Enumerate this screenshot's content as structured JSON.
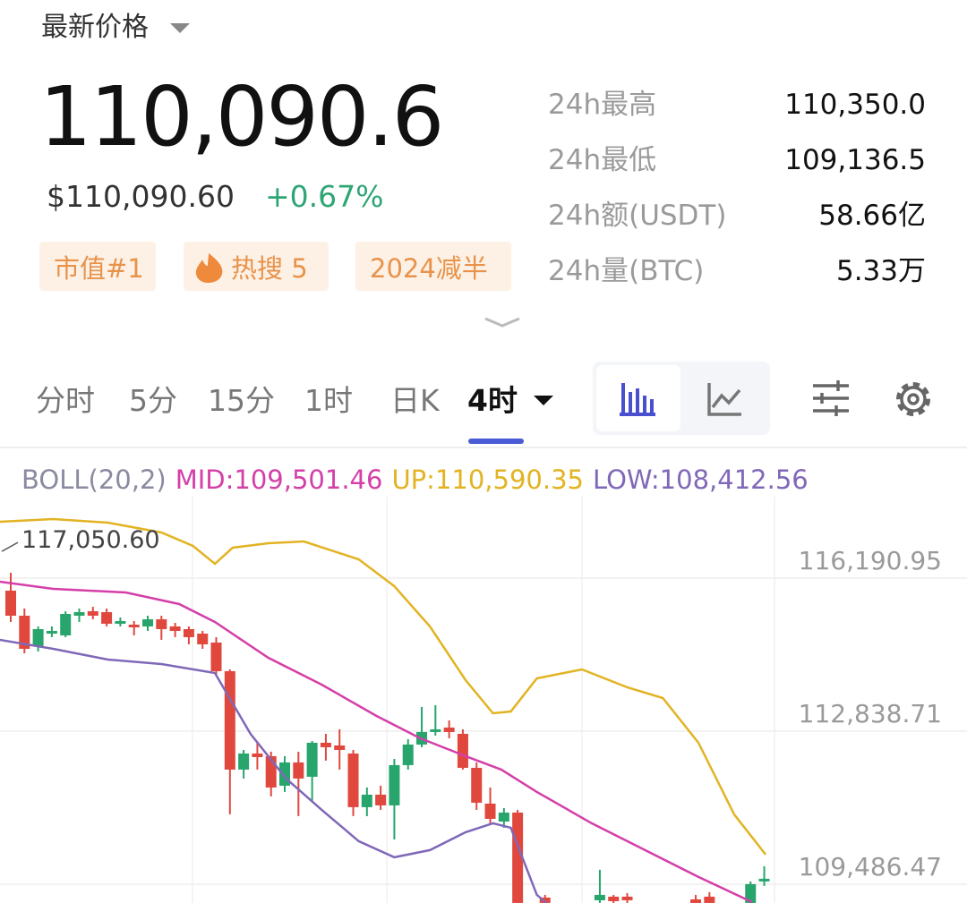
{
  "header": {
    "title": "最新价格",
    "price": "110,090.6",
    "usd": "$110,090.60",
    "change": "+0.67%",
    "tags": [
      "市值#1",
      "热搜 5",
      "2024减半"
    ]
  },
  "stats": [
    [
      "24h最高",
      "110,350.0"
    ],
    [
      "24h最低",
      "109,136.5"
    ],
    [
      "24h额(USDT)",
      "58.66亿"
    ],
    [
      "24h量(BTC)",
      "5.33万"
    ]
  ],
  "tabs": [
    "分时",
    "5分",
    "15分",
    "1时",
    "日K",
    "4时"
  ],
  "chart_data": {
    "type": "candlestick",
    "indicator": "BOLL(20,2)",
    "up_color": "#27a56c",
    "down_color": "#e0483e",
    "xlim": [
      -0.784,
      69.8
    ],
    "ylim": [
      109075,
      117975
    ],
    "yticks": [
      {
        "value": 116190.95,
        "label": "116,190.95"
      },
      {
        "value": 112838.71,
        "label": "112,838.71"
      },
      {
        "value": 109486.47,
        "label": "109,486.47"
      }
    ],
    "grid": true,
    "max_marker": {
      "value": 117050.6,
      "label": "117,050.60"
    },
    "x": [
      0,
      1,
      2,
      3,
      4,
      5,
      6,
      7,
      8,
      9,
      10,
      11,
      12,
      13,
      14,
      15,
      16,
      17,
      18,
      19,
      20,
      21,
      22,
      23,
      24,
      25,
      26,
      27,
      28,
      29,
      30,
      31,
      32,
      33,
      34,
      35,
      36,
      37,
      39,
      43,
      44,
      45,
      50,
      51,
      54,
      55
    ],
    "open": [
      115917,
      115368,
      114702,
      114976,
      114937,
      115368,
      115466,
      115446,
      115192,
      115172,
      115133,
      115290,
      115133,
      115074,
      114976,
      114780,
      114153,
      111997,
      112350,
      112291,
      111644,
      112154,
      111840,
      112585,
      112526,
      112350,
      111174,
      111448,
      111213,
      112095,
      112546,
      112820,
      112918,
      112781,
      112036,
      111252,
      110859,
      111056,
      109194,
      109135,
      109214,
      109214,
      109155,
      109214,
      109076,
      109547
    ],
    "close": [
      115368,
      114643,
      115074,
      115035,
      115407,
      115446,
      115368,
      115192,
      115250,
      115113,
      115290,
      115074,
      115035,
      114898,
      114741,
      114153,
      111997,
      112350,
      112271,
      111605,
      112154,
      111801,
      112585,
      112487,
      112428,
      111174,
      111448,
      111213,
      112095,
      112546,
      112820,
      112879,
      112820,
      112036,
      111272,
      110918,
      111056,
      109076,
      109076,
      109253,
      109115,
      109135,
      109076,
      109076,
      109488,
      109606
    ],
    "high": [
      116309,
      115525,
      115133,
      115133,
      115466,
      115525,
      115564,
      115525,
      115329,
      115250,
      115368,
      115368,
      115211,
      115133,
      115035,
      114898,
      114192,
      112428,
      112585,
      112389,
      112291,
      112389,
      112624,
      112781,
      112879,
      112428,
      111605,
      111644,
      112232,
      112663,
      113369,
      113408,
      113075,
      112879,
      112154,
      111605,
      111154,
      111115,
      109253,
      109802,
      109253,
      109292,
      109253,
      109312,
      109547,
      109880
    ],
    "low": [
      115231,
      114545,
      114584,
      114898,
      114898,
      115231,
      115290,
      115133,
      115133,
      114937,
      115035,
      114839,
      114898,
      114741,
      114643,
      114055,
      111017,
      111801,
      111997,
      111409,
      111507,
      110978,
      111311,
      112193,
      111997,
      110978,
      110978,
      111115,
      110468,
      111997,
      112487,
      112742,
      112683,
      111997,
      111115,
      110820,
      110722,
      109076,
      109076,
      109076,
      109076,
      109076,
      109076,
      109076,
      109076,
      109449
    ],
    "series": [
      {
        "name": "MID:109,501.46",
        "color": "#d43fa8",
        "x": [
          -0.8,
          3.1,
          8.4,
          12.3,
          14.9,
          18.8,
          22.7,
          26.7,
          29.9,
          33.2,
          35.8,
          38.4,
          42.4,
          46.3,
          50.2,
          54.1
        ],
        "values": [
          116113,
          115956,
          115877,
          115623,
          115231,
          114447,
          113859,
          113173,
          112683,
          112291,
          111997,
          111507,
          110821,
          110233,
          109645,
          109096
        ]
      },
      {
        "name": "UP:110,590.35",
        "color": "#e2b322",
        "x": [
          -0.8,
          3.1,
          7.1,
          11,
          13.3,
          14.9,
          16.2,
          18.8,
          21.4,
          25.4,
          28,
          30.6,
          33.2,
          35.2,
          36.5,
          38.4,
          41.7,
          45,
          47.6,
          50.2,
          52.8,
          55.1
        ],
        "values": [
          117426,
          117485,
          117406,
          117191,
          116897,
          116505,
          116857,
          116955,
          116995,
          116603,
          116015,
          115133,
          113957,
          113231,
          113271,
          113996,
          114192,
          113800,
          113565,
          112585,
          111017,
          110135
        ]
      },
      {
        "name": "LOW:108,412.56",
        "color": "#8068b8",
        "x": [
          -0.8,
          3.1,
          7.1,
          11,
          14.9,
          17.5,
          20.1,
          22.7,
          25.4,
          28,
          30.6,
          33.2,
          35.2,
          36.5,
          38.4,
          39.1
        ],
        "values": [
          114839,
          114643,
          114407,
          114309,
          114113,
          112781,
          111801,
          111115,
          110429,
          110076,
          110233,
          110625,
          110821,
          110723,
          109253,
          109076
        ]
      }
    ]
  }
}
